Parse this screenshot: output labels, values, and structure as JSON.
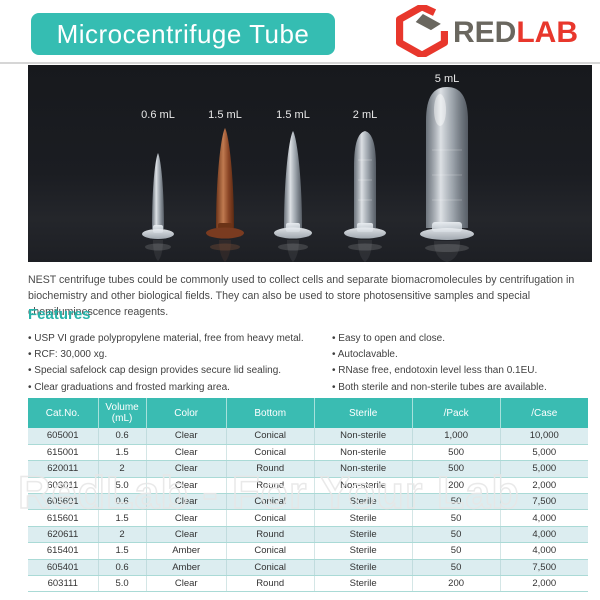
{
  "header": {
    "title": "Microcentrifuge Tube",
    "brand": {
      "red": "RED",
      "lab": "LAB"
    }
  },
  "photo": {
    "tube_labels": [
      "0.6 mL",
      "1.5 mL",
      "1.5 mL",
      "2 mL",
      "5 mL"
    ]
  },
  "description": "NEST centrifuge tubes could be commonly used to collect cells and separate biomacromolecules by centrifugation in biochemistry and other biological fields. They can also be used to store photosensitive samples and special chemiluminescence reagents.",
  "features": {
    "heading": "Features",
    "left": [
      "USP VI grade polypropylene material, free from heavy metal.",
      "RCF: 30,000 xg.",
      "Special safelock cap design provides secure lid sealing.",
      "Clear graduations and frosted marking area."
    ],
    "right": [
      "Easy to open and close.",
      "Autoclavable.",
      "RNase free, endotoxin level less than 0.1EU.",
      "Both sterile and non-sterile tubes are available."
    ]
  },
  "table": {
    "headers": [
      "Cat.No.",
      "Volume (mL)",
      "Color",
      "Bottom",
      "Sterile",
      "/Pack",
      "/Case"
    ],
    "rows": [
      [
        "605001",
        "0.6",
        "Clear",
        "Conical",
        "Non-sterile",
        "1,000",
        "10,000"
      ],
      [
        "615001",
        "1.5",
        "Clear",
        "Conical",
        "Non-sterile",
        "500",
        "5,000"
      ],
      [
        "620011",
        "2",
        "Clear",
        "Round",
        "Non-sterile",
        "500",
        "5,000"
      ],
      [
        "603011",
        "5.0",
        "Clear",
        "Round",
        "Non-sterile",
        "200",
        "2,000"
      ],
      [
        "605601",
        "0.6",
        "Clear",
        "Conical",
        "Sterile",
        "50",
        "7,500"
      ],
      [
        "615601",
        "1.5",
        "Clear",
        "Conical",
        "Sterile",
        "50",
        "4,000"
      ],
      [
        "620611",
        "2",
        "Clear",
        "Round",
        "Sterile",
        "50",
        "4,000"
      ],
      [
        "615401",
        "1.5",
        "Amber",
        "Conical",
        "Sterile",
        "50",
        "4,000"
      ],
      [
        "605401",
        "0.6",
        "Amber",
        "Conical",
        "Sterile",
        "50",
        "7,500"
      ],
      [
        "603111",
        "5.0",
        "Clear",
        "Round",
        "Sterile",
        "200",
        "2,000"
      ]
    ]
  },
  "watermark": "RedLab - For Your Lab",
  "colors": {
    "teal": "#35bdb2",
    "brand_red": "#e8372c",
    "brand_gray": "#6a675f",
    "row_alt": "#dcedf0",
    "photo_bg": "#1a1c21"
  }
}
